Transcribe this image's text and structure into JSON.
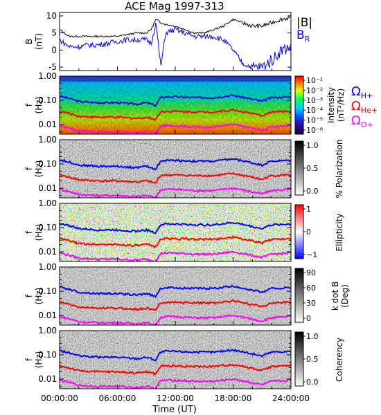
{
  "title": "ACE Mag 1997-313",
  "time_axis": {
    "label": "Time (UT)",
    "ticks": [
      "00:00:00",
      "06:00:00",
      "12:00:00",
      "18:00:00",
      "24:00:00"
    ]
  },
  "legend_panel1": {
    "b_total": "|B|",
    "b_r": "B",
    "b_r_sub": "R",
    "b_color": "#000000",
    "br_color": "#0000ff"
  },
  "gyro_legend": [
    {
      "label": "Ω",
      "sub": "H+",
      "color": "#0000ff"
    },
    {
      "label": "Ω",
      "sub": "He+",
      "color": "#ff0000"
    },
    {
      "label": "Ω",
      "sub": "O+",
      "color": "#ff00ff"
    }
  ],
  "colorbars": {
    "intensity": {
      "title": "Intensity",
      "unit": "(nT²/Hz)",
      "ticks": [
        "10⁻¹",
        "10⁻²",
        "10⁻³",
        "10⁻⁴",
        "10⁻⁵",
        "10⁻⁶"
      ],
      "scale": "rainbow-log"
    },
    "polarization": {
      "title": "% Polarization",
      "ticks": [
        "1.0",
        "0.5",
        "0.0"
      ],
      "scale": "gray"
    },
    "ellipticity": {
      "title": "Ellipticity",
      "ticks": [
        "1",
        "0",
        "−1"
      ],
      "scale": "blue-white-red"
    },
    "kdotb": {
      "title": "k dot B",
      "unit": "(Deg)",
      "ticks": [
        "90",
        "60",
        "30",
        "0"
      ],
      "scale": "gray"
    },
    "coherency": {
      "title": "Coherency",
      "ticks": [
        "1.0",
        "0.5",
        "0.0"
      ],
      "scale": "gray"
    }
  },
  "panels": [
    {
      "ylabel": "B",
      "yunit": "(nT)",
      "yticks": [
        "10",
        "5",
        "0",
        "-5"
      ]
    },
    {
      "ylabel": "f",
      "yunit": "(Hz)",
      "yticks": [
        "1.00",
        "0.10",
        "0.01"
      ]
    },
    {
      "ylabel": "f",
      "yunit": "(Hz)",
      "yticks": [
        "1.00",
        "0.10",
        "0.01"
      ]
    },
    {
      "ylabel": "f",
      "yunit": "(Hz)",
      "yticks": [
        "1.00",
        "0.10",
        "0.01"
      ]
    },
    {
      "ylabel": "f",
      "yunit": "(Hz)",
      "yticks": [
        "1.00",
        "0.10",
        "0.01"
      ]
    },
    {
      "ylabel": "f",
      "yunit": "(Hz)",
      "yticks": [
        "1.00",
        "0.10",
        "0.01"
      ]
    }
  ],
  "chart_data": [
    {
      "type": "line",
      "title": "ACE Mag 1997-313",
      "xlabel": "Time (UT)",
      "ylabel": "B (nT)",
      "xlim": [
        0,
        24
      ],
      "ylim": [
        -6,
        11
      ],
      "x_hours": [
        0,
        1,
        2,
        3,
        4,
        5,
        6,
        7,
        8,
        9,
        9.5,
        10,
        10.5,
        11,
        12,
        13,
        14,
        15,
        16,
        17,
        18,
        19,
        20,
        21,
        22,
        23,
        24
      ],
      "series": [
        {
          "name": "|B|",
          "color": "#000000",
          "values": [
            6,
            4,
            4,
            4,
            4,
            4,
            4,
            4.5,
            5,
            5,
            6,
            9,
            8,
            7.5,
            7,
            6,
            5,
            5,
            6,
            7,
            9,
            8,
            7,
            7,
            8,
            9,
            9.5
          ]
        },
        {
          "name": "B_R",
          "color": "#0000ff",
          "values": [
            3,
            1,
            1,
            1.5,
            1.5,
            2,
            2.5,
            3,
            3,
            3,
            2,
            8,
            -5,
            5,
            6,
            5,
            4,
            4,
            4,
            3,
            0,
            -4,
            -5,
            -5,
            -3,
            0,
            1
          ]
        }
      ]
    },
    {
      "type": "heatmap",
      "xlabel": "Time (UT)",
      "ylabel": "f (Hz)",
      "yscale": "log",
      "ylim": [
        0.004,
        1.0
      ],
      "xlim": [
        0,
        24
      ],
      "x_hours": [
        0,
        2,
        4,
        6,
        8,
        9,
        10,
        10.5,
        11,
        12,
        14,
        16,
        18,
        20,
        21,
        22,
        24
      ],
      "gyro_lines": [
        {
          "name": "Ω H+",
          "color": "#0000ff",
          "values": [
            0.15,
            0.09,
            0.08,
            0.08,
            0.07,
            0.08,
            0.06,
            0.13,
            0.14,
            0.14,
            0.13,
            0.13,
            0.16,
            0.11,
            0.09,
            0.13,
            0.14
          ]
        },
        {
          "name": "Ω He+",
          "color": "#ff0000",
          "values": [
            0.035,
            0.022,
            0.02,
            0.02,
            0.018,
            0.02,
            0.016,
            0.034,
            0.035,
            0.035,
            0.033,
            0.033,
            0.04,
            0.028,
            0.023,
            0.033,
            0.036
          ]
        },
        {
          "name": "Ω O+",
          "color": "#ff00ff",
          "values": [
            0.009,
            0.0055,
            0.005,
            0.005,
            0.0045,
            0.005,
            0.004,
            0.0085,
            0.009,
            0.009,
            0.008,
            0.008,
            0.01,
            0.007,
            0.0058,
            0.008,
            0.009
          ]
        }
      ],
      "panels": [
        "Intensity (nT²/Hz)",
        "% Polarization",
        "Ellipticity",
        "k dot B (Deg)",
        "Coherency"
      ]
    }
  ]
}
